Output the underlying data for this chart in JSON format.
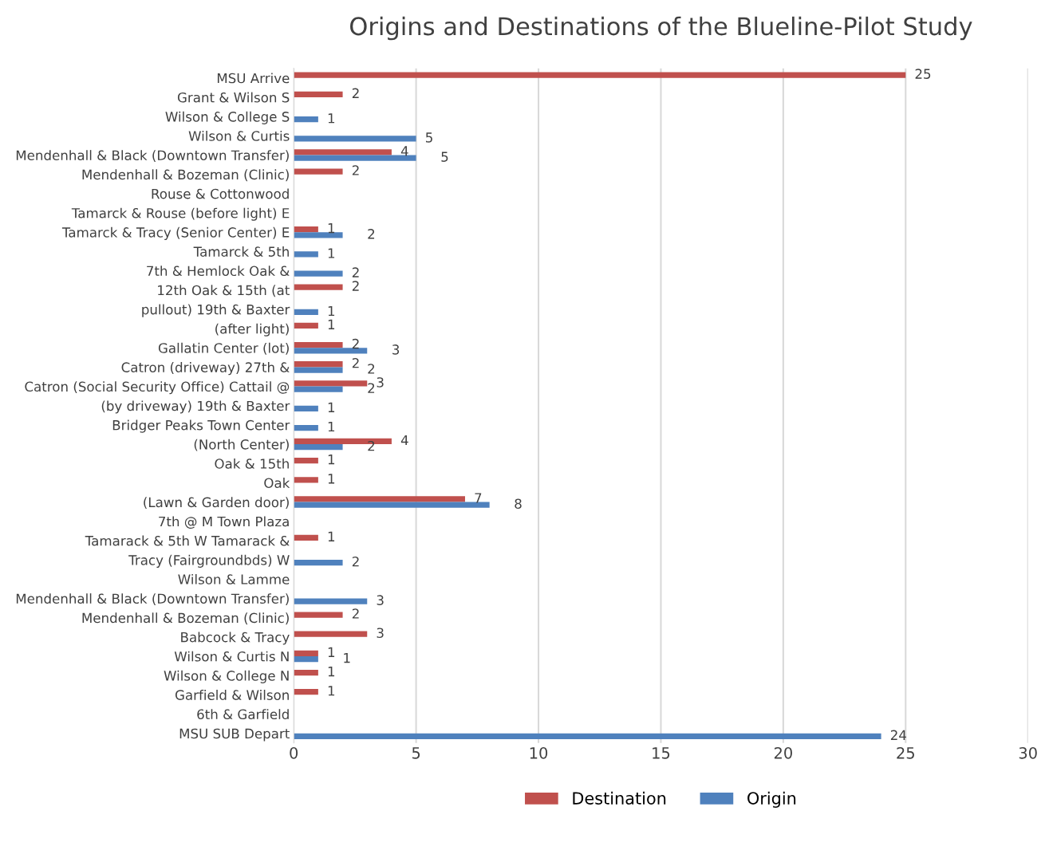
{
  "chart_data": {
    "type": "bar",
    "orientation": "horizontal",
    "title": "Origins and Destinations of the Blueline-Pilot Study",
    "categories": [
      "MSU Arrive",
      "Grant & Wilson S",
      "Wilson & College S",
      "Wilson & Curtis",
      "Mendenhall & Black (Downtown Transfer)",
      "Mendenhall & Bozeman (Clinic)",
      "Rouse & Cottonwood",
      "Tamarck & Rouse (before light) E",
      "Tamarck & Tracy (Senior Center) E",
      "Tamarck & 5th",
      "7th & Hemlock Oak &",
      "12th Oak & 15th (at",
      "pullout) 19th & Baxter",
      "(after light)",
      "Gallatin Center (lot)",
      "Catron (driveway) 27th &",
      "Catron (Social Security Office) Cattail @",
      "(by driveway) 19th & Baxter",
      "Bridger Peaks Town Center",
      "(North Center)",
      "Oak & 15th",
      "Oak",
      "(Lawn & Garden door)",
      "7th @ M Town Plaza",
      "Tamarack & 5th W Tamarack &",
      "Tracy (Fairgroundbds) W",
      "Wilson & Lamme",
      "Mendenhall & Black (Downtown Transfer)",
      "Mendenhall & Bozeman (Clinic)",
      "Babcock & Tracy",
      "Wilson & Curtis N",
      "Wilson & College N",
      "Garfield & Wilson",
      "6th & Garfield",
      "MSU SUB Depart"
    ],
    "series": [
      {
        "name": "Destination",
        "color": "#c0504d",
        "values": [
          25,
          2,
          null,
          null,
          4,
          2,
          null,
          null,
          1,
          null,
          null,
          2,
          null,
          1,
          2,
          2,
          3,
          null,
          null,
          4,
          1,
          1,
          7,
          null,
          1,
          null,
          null,
          null,
          2,
          3,
          1,
          1,
          1,
          null,
          null
        ]
      },
      {
        "name": "Origin",
        "color": "#4f81bd",
        "values": [
          null,
          null,
          1,
          5,
          5,
          null,
          null,
          null,
          2,
          1,
          2,
          null,
          1,
          null,
          3,
          2,
          2,
          1,
          1,
          2,
          null,
          null,
          8,
          null,
          null,
          2,
          null,
          3,
          null,
          null,
          1,
          null,
          null,
          null,
          24
        ]
      }
    ],
    "xlim": [
      0,
      30
    ],
    "xticks": [
      0,
      5,
      10,
      15,
      20,
      25,
      30
    ],
    "grid": "x",
    "legend": "bottom",
    "data_labels": true
  }
}
